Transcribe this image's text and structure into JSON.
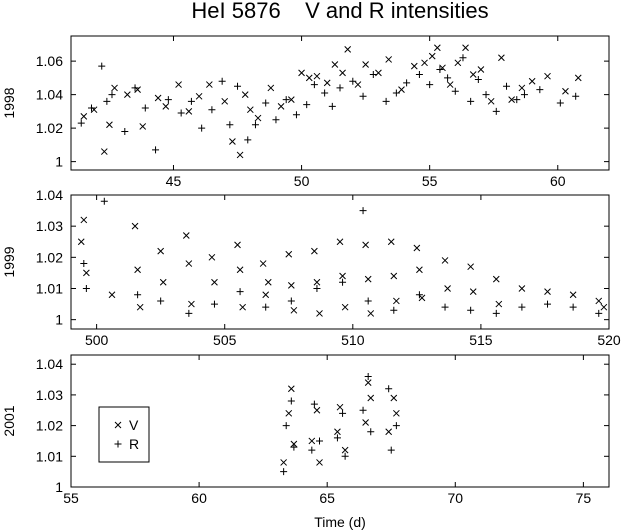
{
  "title": "HeI 5876    V and R intensities",
  "xlabel": "Time (d)",
  "chart_data": [
    {
      "type": "scatter",
      "ylabel": "1998",
      "xlim": [
        41,
        62
      ],
      "ylim": [
        0.995,
        1.075
      ],
      "xticks": [
        45,
        50,
        55,
        60
      ],
      "yticks": [
        1,
        1.02,
        1.04,
        1.06
      ],
      "series": [
        {
          "name": "V",
          "marker": "x",
          "x": [
            41.5,
            41.9,
            42.3,
            42.5,
            42.7,
            43.2,
            43.6,
            43.8,
            44.4,
            44.7,
            45.2,
            45.6,
            46.0,
            46.4,
            47.0,
            47.3,
            47.6,
            47.8,
            48.0,
            48.3,
            48.8,
            49.2,
            49.6,
            50.0,
            50.3,
            50.6,
            51.0,
            51.3,
            51.6,
            51.8,
            52.2,
            52.5,
            53.0,
            53.4,
            53.9,
            54.4,
            54.8,
            55.1,
            55.3,
            55.5,
            55.8,
            56.1,
            56.4,
            56.7,
            57.0,
            57.4,
            57.8,
            58.2,
            58.6,
            59.0,
            59.6,
            60.3,
            60.8
          ],
          "y": [
            1.027,
            1.031,
            1.006,
            1.022,
            1.044,
            1.04,
            1.043,
            1.021,
            1.038,
            1.033,
            1.046,
            1.03,
            1.039,
            1.046,
            1.036,
            1.012,
            1.004,
            1.04,
            1.031,
            1.026,
            1.044,
            1.033,
            1.037,
            1.053,
            1.05,
            1.051,
            1.047,
            1.058,
            1.053,
            1.067,
            1.046,
            1.058,
            1.053,
            1.061,
            1.043,
            1.057,
            1.059,
            1.063,
            1.068,
            1.056,
            1.046,
            1.059,
            1.068,
            1.052,
            1.055,
            1.036,
            1.062,
            1.037,
            1.044,
            1.048,
            1.051,
            1.042,
            1.05
          ]
        },
        {
          "name": "R",
          "marker": "+",
          "x": [
            41.4,
            41.8,
            42.2,
            42.4,
            42.6,
            43.1,
            43.5,
            43.9,
            44.3,
            44.8,
            45.3,
            45.7,
            46.1,
            46.5,
            46.9,
            47.2,
            47.5,
            47.9,
            48.2,
            48.6,
            49.0,
            49.4,
            49.8,
            50.2,
            50.5,
            50.9,
            51.2,
            51.5,
            52.0,
            52.4,
            52.8,
            53.3,
            53.7,
            54.1,
            54.6,
            55.0,
            55.4,
            55.7,
            56.0,
            56.3,
            56.6,
            56.9,
            57.2,
            57.6,
            58.0,
            58.4,
            58.7,
            59.3,
            60.1,
            60.7
          ],
          "y": [
            1.023,
            1.032,
            1.057,
            1.036,
            1.04,
            1.018,
            1.044,
            1.032,
            1.007,
            1.037,
            1.029,
            1.036,
            1.02,
            1.031,
            1.048,
            1.022,
            1.045,
            1.013,
            1.022,
            1.035,
            1.025,
            1.037,
            1.028,
            1.034,
            1.046,
            1.041,
            1.033,
            1.044,
            1.048,
            1.039,
            1.052,
            1.036,
            1.041,
            1.047,
            1.052,
            1.046,
            1.055,
            1.05,
            1.042,
            1.062,
            1.036,
            1.049,
            1.04,
            1.03,
            1.045,
            1.037,
            1.04,
            1.043,
            1.035,
            1.039
          ]
        }
      ]
    },
    {
      "type": "scatter",
      "ylabel": "1999",
      "xlim": [
        499,
        520
      ],
      "ylim": [
        0.997,
        1.04
      ],
      "xticks": [
        500,
        505,
        510,
        515,
        520
      ],
      "yticks": [
        1,
        1.01,
        1.02,
        1.03,
        1.04
      ],
      "series": [
        {
          "name": "V",
          "marker": "x",
          "x": [
            499.4,
            499.5,
            499.6,
            500.6,
            501.5,
            501.6,
            501.7,
            502.5,
            502.6,
            503.5,
            503.6,
            503.7,
            504.5,
            504.6,
            505.5,
            505.6,
            505.7,
            506.5,
            506.6,
            506.7,
            507.5,
            507.6,
            507.7,
            508.5,
            508.6,
            508.7,
            509.5,
            509.6,
            509.7,
            510.5,
            510.6,
            510.7,
            511.5,
            511.6,
            511.7,
            512.5,
            512.6,
            512.7,
            513.6,
            513.7,
            514.6,
            514.7,
            515.6,
            515.7,
            516.6,
            517.6,
            518.6,
            519.6,
            519.8
          ],
          "y": [
            1.025,
            1.032,
            1.015,
            1.008,
            1.03,
            1.016,
            1.004,
            1.022,
            1.012,
            1.027,
            1.018,
            1.005,
            1.02,
            1.012,
            1.024,
            1.016,
            1.004,
            1.018,
            1.008,
            1.012,
            1.021,
            1.011,
            1.003,
            1.022,
            1.012,
            1.002,
            1.025,
            1.014,
            1.004,
            1.024,
            1.013,
            1.002,
            1.025,
            1.014,
            1.006,
            1.023,
            1.016,
            1.007,
            1.019,
            1.01,
            1.017,
            1.009,
            1.013,
            1.005,
            1.01,
            1.009,
            1.008,
            1.006,
            1.004
          ]
        },
        {
          "name": "R",
          "marker": "+",
          "x": [
            499.5,
            499.6,
            500.3,
            501.6,
            502.5,
            503.6,
            504.6,
            505.6,
            506.6,
            507.6,
            508.6,
            509.6,
            510.4,
            510.6,
            511.6,
            512.6,
            513.6,
            514.6,
            515.6,
            516.6,
            517.6,
            518.6,
            519.6
          ],
          "y": [
            1.018,
            1.01,
            1.038,
            1.008,
            1.006,
            1.002,
            1.005,
            1.009,
            1.004,
            1.006,
            1.01,
            1.012,
            1.035,
            1.006,
            1.003,
            1.008,
            1.004,
            1.003,
            1.002,
            1.004,
            1.005,
            1.004,
            1.002
          ]
        }
      ]
    },
    {
      "type": "scatter",
      "ylabel": "2001",
      "xlim": [
        55,
        76
      ],
      "ylim": [
        1.0,
        1.043
      ],
      "xticks": [
        55,
        60,
        65,
        70,
        75
      ],
      "yticks": [
        1,
        1.01,
        1.02,
        1.03,
        1.04
      ],
      "series": [
        {
          "name": "V",
          "marker": "x",
          "x": [
            63.3,
            63.5,
            63.6,
            63.7,
            64.4,
            64.6,
            64.7,
            65.4,
            65.5,
            65.7,
            66.5,
            66.6,
            66.7,
            67.4,
            67.6,
            67.7
          ],
          "y": [
            1.008,
            1.024,
            1.032,
            1.014,
            1.015,
            1.025,
            1.008,
            1.018,
            1.026,
            1.012,
            1.021,
            1.034,
            1.029,
            1.018,
            1.029,
            1.024
          ]
        },
        {
          "name": "R",
          "marker": "+",
          "x": [
            63.3,
            63.4,
            63.6,
            63.7,
            64.4,
            64.5,
            64.7,
            65.4,
            65.6,
            65.7,
            66.4,
            66.6,
            66.7,
            67.4,
            67.5,
            67.7
          ],
          "y": [
            1.005,
            1.02,
            1.028,
            1.013,
            1.012,
            1.027,
            1.015,
            1.016,
            1.024,
            1.01,
            1.025,
            1.036,
            1.018,
            1.032,
            1.012,
            1.02
          ]
        }
      ]
    }
  ],
  "legend": {
    "entries": [
      "V",
      "R"
    ],
    "placement": "bottom panel, left"
  }
}
